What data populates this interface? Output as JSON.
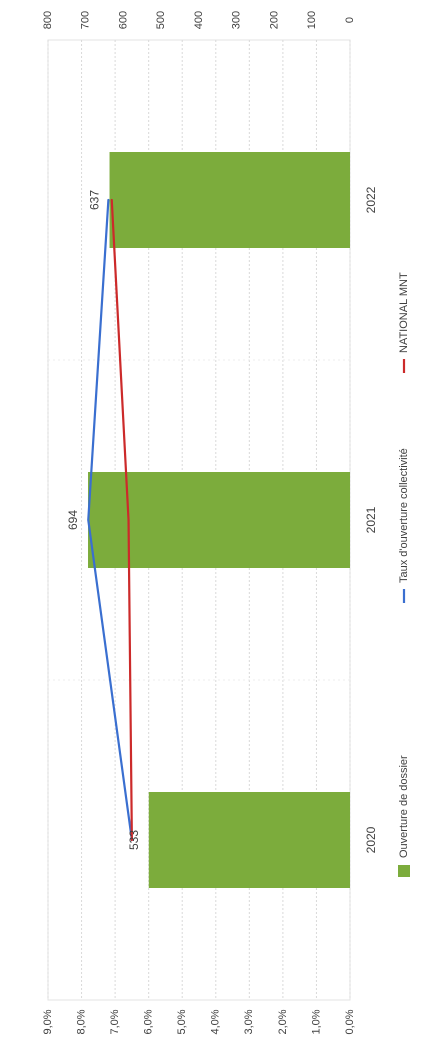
{
  "chart_data": {
    "type": "bar",
    "orientation": "rotated-90-ccw",
    "categories": [
      "2020",
      "2021",
      "2022"
    ],
    "series": [
      {
        "name": "Ouverture de dossier",
        "kind": "bar",
        "axis": "secondary",
        "values": [
          533,
          694,
          637
        ],
        "color": "#7cac3c"
      },
      {
        "name": "Taux d'ouverture collectivité",
        "kind": "line",
        "axis": "primary",
        "values": [
          6.5,
          7.8,
          7.2
        ],
        "color": "#3a6fd0"
      },
      {
        "name": "NATIONAL MNT",
        "kind": "line",
        "axis": "primary",
        "values": [
          6.5,
          6.6,
          7.1
        ],
        "color": "#cc2a2a"
      }
    ],
    "data_labels": [
      "533",
      "694",
      "637"
    ],
    "primary_axis": {
      "min": 0,
      "max": 9,
      "ticks": [
        "0,0%",
        "1,0%",
        "2,0%",
        "3,0%",
        "4,0%",
        "5,0%",
        "6,0%",
        "7,0%",
        "8,0%",
        "9,0%"
      ]
    },
    "secondary_axis": {
      "min": 0,
      "max": 800,
      "ticks": [
        "0",
        "100",
        "200",
        "300",
        "400",
        "500",
        "600",
        "700",
        "800"
      ]
    },
    "grid": true,
    "legend_position": "bottom",
    "legend": [
      "Ouverture de dossier",
      "Taux d'ouverture collectivité",
      "NATIONAL MNT"
    ]
  }
}
